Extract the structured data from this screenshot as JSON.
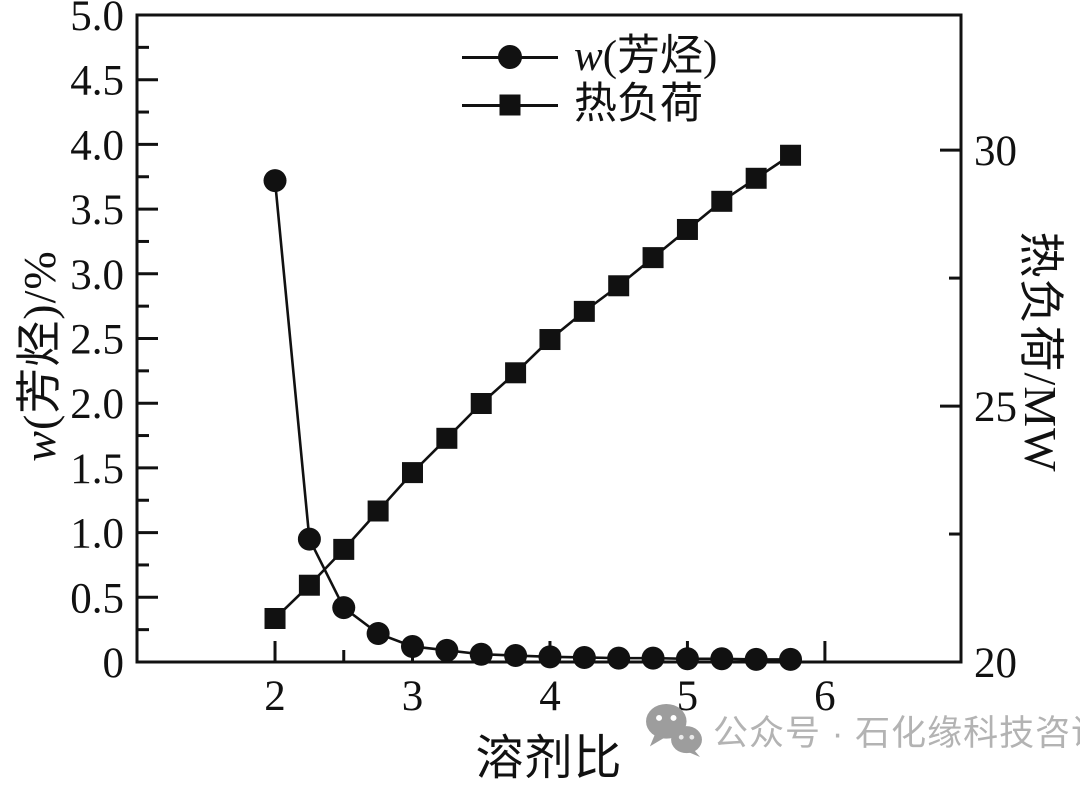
{
  "colors": {
    "ink": "#111111",
    "watermark_icon": "#9d9d9d",
    "watermark_text": "#b3b3b3",
    "background": "#ffffff"
  },
  "axes_titles": {
    "y_left_italic": "w",
    "y_left_rest": "(芳烃)/%",
    "y_right": "热负荷/MW",
    "x": "溶剂比"
  },
  "legend": {
    "entries": [
      {
        "marker": "circle",
        "label_italic": "w",
        "label_rest": "(芳烃)"
      },
      {
        "marker": "square",
        "label_italic": "",
        "label_rest": "热负荷"
      }
    ]
  },
  "watermark": {
    "icon": "wechat-icon",
    "text": "公众号 · 石化缘科技咨询"
  },
  "chart_data": {
    "type": "line",
    "title": "",
    "xlabel": "溶剂比",
    "ylabel_left": "w(芳烃)/%",
    "ylabel_right": "热负荷/MW",
    "grid": false,
    "legend_position": "top-center-inside",
    "xlim": [
      0.996,
      6.99
    ],
    "ylim_left": [
      0,
      5.0
    ],
    "ylim_right": [
      20,
      32.64
    ],
    "x_axis": {
      "majors": [
        {
          "v": 2,
          "label": "2"
        },
        {
          "v": 3,
          "label": "3"
        },
        {
          "v": 4,
          "label": "4"
        },
        {
          "v": 5,
          "label": "5"
        },
        {
          "v": 6,
          "label": "6"
        }
      ],
      "minors": [
        2.5,
        3.5,
        4.5,
        5.5
      ]
    },
    "y_left_axis": {
      "majors": [
        {
          "v": 5.0,
          "label": "5.0"
        },
        {
          "v": 4.5,
          "label": "4.5"
        },
        {
          "v": 4.0,
          "label": "4.0"
        },
        {
          "v": 3.5,
          "label": "3.5"
        },
        {
          "v": 3.0,
          "label": "3.0"
        },
        {
          "v": 2.5,
          "label": "2.5"
        },
        {
          "v": 2.0,
          "label": "2.0"
        },
        {
          "v": 1.5,
          "label": "1.5"
        },
        {
          "v": 1.0,
          "label": "1.0"
        },
        {
          "v": 0.5,
          "label": "0.5"
        },
        {
          "v": 0,
          "label": "0"
        }
      ],
      "minors": [
        0.25,
        0.75,
        1.25,
        1.75,
        2.25,
        2.75,
        3.25,
        3.75,
        4.25,
        4.75
      ]
    },
    "y_right_axis": {
      "majors": [
        {
          "v": 30,
          "label": "30"
        },
        {
          "v": 25,
          "label": "25"
        },
        {
          "v": 20,
          "label": "20"
        }
      ],
      "minors": [
        22.5,
        27.5
      ]
    },
    "x": [
      2.0,
      2.25,
      2.5,
      2.75,
      3.0,
      3.25,
      3.5,
      3.75,
      4.0,
      4.25,
      4.5,
      4.75,
      5.0,
      5.25,
      5.5,
      5.75
    ],
    "series": [
      {
        "name": "w(芳烃)",
        "axis": "left",
        "marker": "circle",
        "values": [
          3.72,
          0.95,
          0.42,
          0.22,
          0.12,
          0.09,
          0.06,
          0.05,
          0.04,
          0.035,
          0.03,
          0.03,
          0.025,
          0.025,
          0.02,
          0.02
        ]
      },
      {
        "name": "热负荷",
        "axis": "right",
        "marker": "square",
        "values": [
          20.85,
          21.5,
          22.2,
          22.95,
          23.7,
          24.37,
          25.05,
          25.65,
          26.3,
          26.85,
          27.35,
          27.9,
          28.45,
          29.0,
          29.45,
          29.9
        ]
      }
    ]
  }
}
